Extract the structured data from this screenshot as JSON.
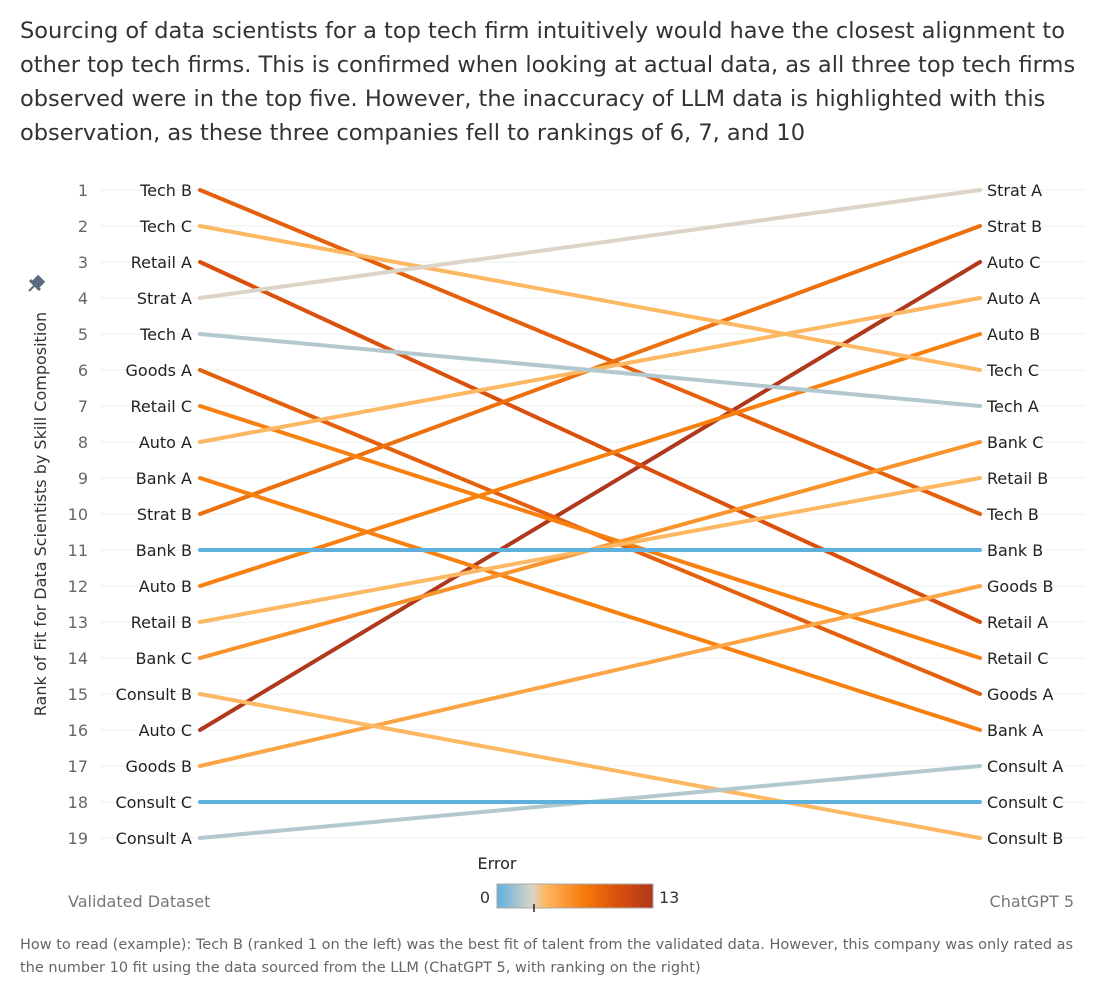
{
  "title": "Sourcing of data scientists for a top tech firm intuitively would have the closest alignment to other top tech firms. This is confirmed when looking at actual data, as all three top tech firms observed were in the top five. However, the inaccuracy of LLM data is highlighted with this observation, as these three companies fell to rankings of 6, 7, and 10",
  "footnote": "How to read (example): Tech B (ranked 1 on the left) was the best fit of talent from the validated data. However, this company was only rated as the number 10 fit using the data sourced from the LLM (ChatGPT 5, with ranking on the right)",
  "chart_data": {
    "type": "line",
    "subtype": "slope",
    "ylabel": "Rank of Fit for Data Scientists by Skill Composition",
    "left_label": "Validated Dataset",
    "right_label": "ChatGPT 5",
    "yticks": [
      1,
      2,
      3,
      4,
      5,
      6,
      7,
      8,
      9,
      10,
      11,
      12,
      13,
      14,
      15,
      16,
      17,
      18,
      19
    ],
    "ylim": [
      1,
      19
    ],
    "legend": {
      "title": "Error",
      "min": "0",
      "max": "13",
      "placement": "bottom-center"
    },
    "color_stops": [
      {
        "v": 0,
        "c": "#5fb0dc"
      },
      {
        "v": 3,
        "c": "#dcd4c7"
      },
      {
        "v": 4,
        "c": "#fdb863"
      },
      {
        "v": 7,
        "c": "#f7800f"
      },
      {
        "v": 10,
        "c": "#da500c"
      },
      {
        "v": 13,
        "c": "#b0381b"
      }
    ],
    "series": [
      {
        "name": "Tech B",
        "left": 1,
        "right": 10,
        "error": 9
      },
      {
        "name": "Tech C",
        "left": 2,
        "right": 6,
        "error": 4
      },
      {
        "name": "Retail A",
        "left": 3,
        "right": 13,
        "error": 10
      },
      {
        "name": "Strat A",
        "left": 4,
        "right": 1,
        "error": 3
      },
      {
        "name": "Tech A",
        "left": 5,
        "right": 7,
        "error": 2
      },
      {
        "name": "Goods A",
        "left": 6,
        "right": 15,
        "error": 9
      },
      {
        "name": "Retail C",
        "left": 7,
        "right": 14,
        "error": 7
      },
      {
        "name": "Auto A",
        "left": 8,
        "right": 4,
        "error": 4
      },
      {
        "name": "Bank A",
        "left": 9,
        "right": 16,
        "error": 7
      },
      {
        "name": "Strat B",
        "left": 10,
        "right": 2,
        "error": 8
      },
      {
        "name": "Bank B",
        "left": 11,
        "right": 11,
        "error": 0
      },
      {
        "name": "Auto B",
        "left": 12,
        "right": 5,
        "error": 7
      },
      {
        "name": "Retail B",
        "left": 13,
        "right": 9,
        "error": 4
      },
      {
        "name": "Bank C",
        "left": 14,
        "right": 8,
        "error": 6
      },
      {
        "name": "Consult B",
        "left": 15,
        "right": 19,
        "error": 4
      },
      {
        "name": "Auto C",
        "left": 16,
        "right": 3,
        "error": 13
      },
      {
        "name": "Goods B",
        "left": 17,
        "right": 12,
        "error": 5
      },
      {
        "name": "Consult C",
        "left": 18,
        "right": 18,
        "error": 0
      },
      {
        "name": "Consult A",
        "left": 19,
        "right": 17,
        "error": 2
      }
    ]
  }
}
